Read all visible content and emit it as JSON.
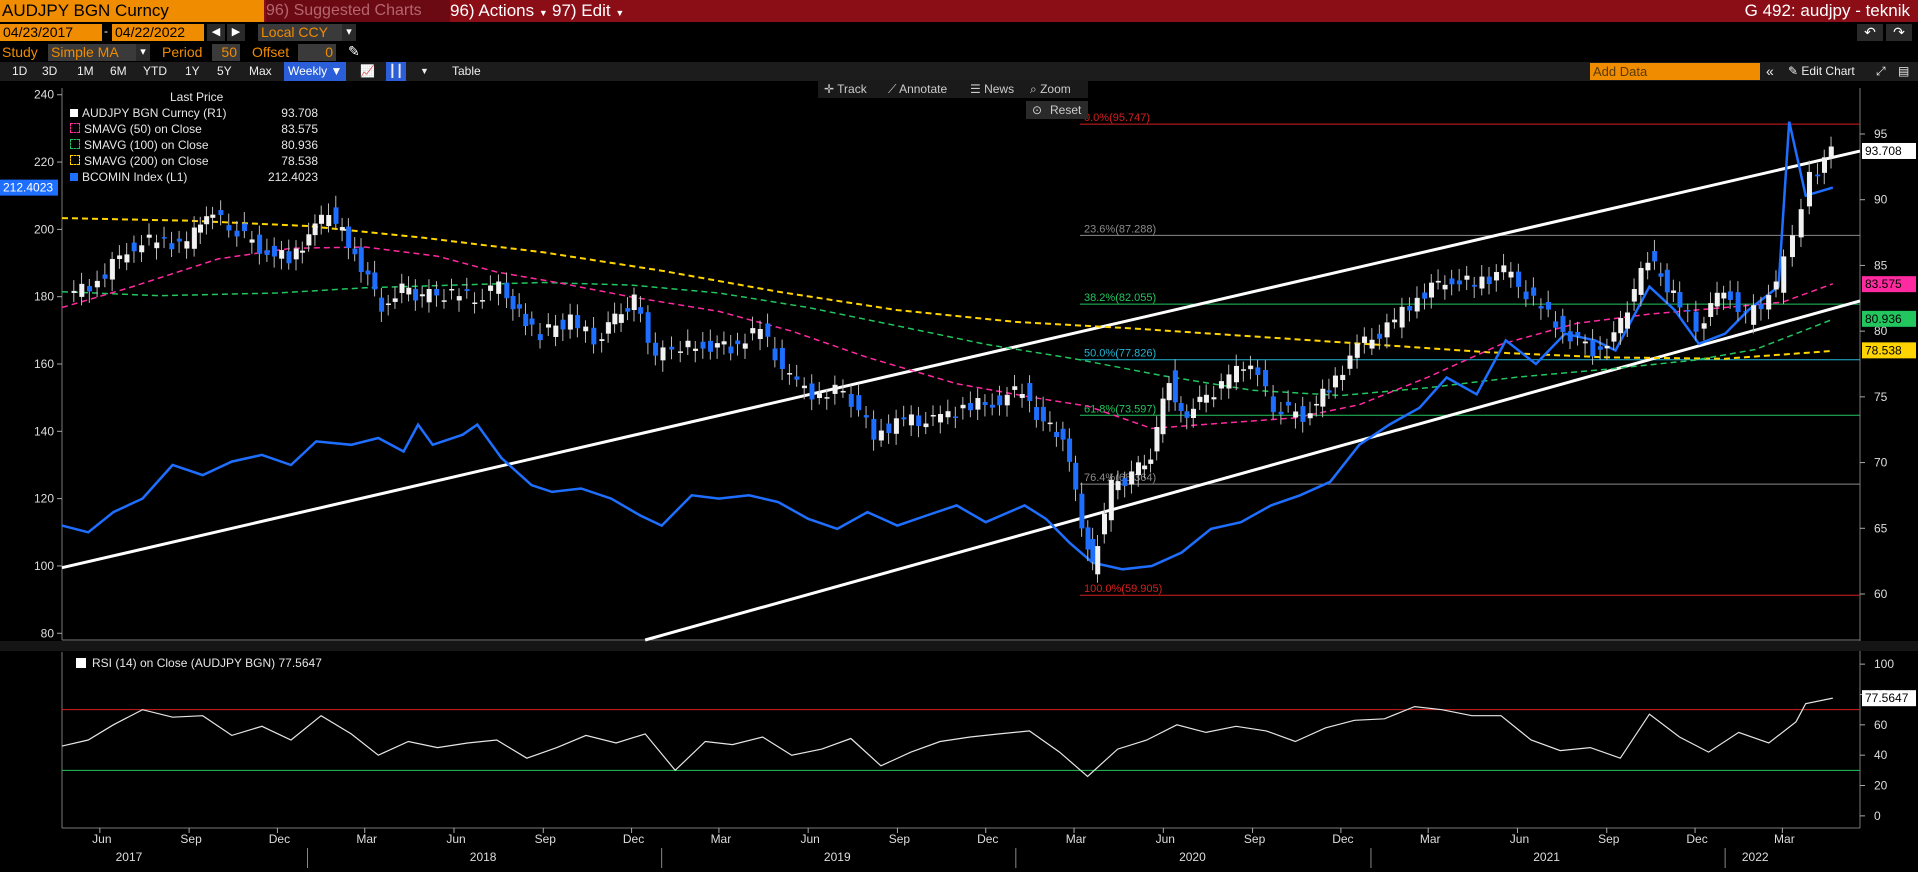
{
  "header": {
    "security": "AUDJPY BGN Curncy",
    "suggested": "96) Suggested Charts",
    "actions": "96) Actions",
    "edit": "97) Edit",
    "title_right": "G 492: audjpy - teknik"
  },
  "toolbar": {
    "date_from": "04/23/2017",
    "date_to": "04/22/2022",
    "currency": "Local CCY",
    "study_label": "Study",
    "study_value": "Simple MA",
    "period_label": "Period",
    "period_value": "50",
    "offset_label": "Offset",
    "offset_value": "0",
    "timeframes": [
      "1D",
      "3D",
      "1M",
      "6M",
      "YTD",
      "1Y",
      "5Y",
      "Max"
    ],
    "frequency": "Weekly",
    "table": "Table",
    "add_data_placeholder": "Add Data",
    "edit_chart": "Edit Chart"
  },
  "chart_tools": {
    "track": "Track",
    "annotate": "Annotate",
    "news": "News",
    "zoom": "Zoom",
    "reset": "Reset"
  },
  "legend": {
    "header": "Last Price",
    "rows": [
      {
        "label": "AUDJPY BGN Curncy  (R1)",
        "value": "93.708",
        "color": "#ffffff"
      },
      {
        "label": "SMAVG (50)  on Close",
        "value": "83.575",
        "color": "#ff2aa0"
      },
      {
        "label": "SMAVG (100)  on Close",
        "value": "80.936",
        "color": "#22c55e"
      },
      {
        "label": "SMAVG (200)  on Close",
        "value": "78.538",
        "color": "#ffd400"
      },
      {
        "label": "BCOMIN Index  (L1)",
        "value": "212.4023",
        "color": "#1e6fff"
      }
    ]
  },
  "colors": {
    "price": "#ffffff",
    "sma50": "#ff2aa0",
    "sma100": "#22c55e",
    "sma200": "#ffd400",
    "bcomin": "#1e6fff",
    "fib": "#8a8a8a",
    "accent": "#f08c00"
  },
  "chart_data": {
    "type": "line",
    "x_time_labels": [
      {
        "label": "Jun",
        "date": "2017-06"
      },
      {
        "label": "Sep",
        "date": "2017-09"
      },
      {
        "label": "Dec",
        "date": "2017-12"
      },
      {
        "label": "Mar",
        "date": "2018-03"
      },
      {
        "label": "Jun",
        "date": "2018-06"
      },
      {
        "label": "Sep",
        "date": "2018-09"
      },
      {
        "label": "Dec",
        "date": "2018-12"
      },
      {
        "label": "Mar",
        "date": "2019-03"
      },
      {
        "label": "Jun",
        "date": "2019-06"
      },
      {
        "label": "Sep",
        "date": "2019-09"
      },
      {
        "label": "Dec",
        "date": "2019-12"
      },
      {
        "label": "Mar",
        "date": "2020-03"
      },
      {
        "label": "Jun",
        "date": "2020-06"
      },
      {
        "label": "Sep",
        "date": "2020-09"
      },
      {
        "label": "Dec",
        "date": "2020-12"
      },
      {
        "label": "Mar",
        "date": "2021-03"
      },
      {
        "label": "Jun",
        "date": "2021-06"
      },
      {
        "label": "Sep",
        "date": "2021-09"
      },
      {
        "label": "Dec",
        "date": "2021-12"
      },
      {
        "label": "Mar",
        "date": "2022-03"
      }
    ],
    "years": [
      {
        "label": "2017",
        "date": "2017-07"
      },
      {
        "label": "2018",
        "date": "2018-07"
      },
      {
        "label": "2019",
        "date": "2019-07"
      },
      {
        "label": "2020",
        "date": "2020-07"
      },
      {
        "label": "2021",
        "date": "2021-07"
      },
      {
        "label": "2022",
        "date": "2022-02"
      }
    ],
    "x_range": [
      "2017-04-23",
      "2022-05-20"
    ],
    "right_axis": {
      "min": 56.5,
      "max": 98.5,
      "ticks": [
        60,
        65,
        70,
        75,
        80,
        85,
        90,
        95
      ]
    },
    "left_axis": {
      "min": 78,
      "max": 242,
      "ticks": [
        80,
        100,
        120,
        140,
        160,
        180,
        200,
        220,
        240
      ]
    },
    "rsi_axis": {
      "min": -8,
      "max": 108,
      "ticks": [
        0,
        20,
        40,
        60,
        80,
        100
      ]
    },
    "last_values": {
      "price": "93.708",
      "sma50": "83.575",
      "sma100": "80.936",
      "sma200": "78.538",
      "bcomin": "212.4023"
    },
    "fibonacci": [
      {
        "label": "0.0%(95.747)",
        "level": 95.747,
        "color": "#d42020"
      },
      {
        "label": "23.6%(87.288)",
        "level": 87.288,
        "color": "#8a8a8a"
      },
      {
        "label": "38.2%(82.055)",
        "level": 82.055,
        "color": "#22c55e"
      },
      {
        "label": "50.0%(77.826)",
        "level": 77.826,
        "color": "#22b5d5"
      },
      {
        "label": "61.8%(73.597)",
        "level": 73.597,
        "color": "#22c55e"
      },
      {
        "label": "76.4%(68.364)",
        "level": 68.364,
        "color": "#8a8a8a"
      },
      {
        "label": "100.0%(59.905)",
        "level": 59.905,
        "color": "#d42020"
      }
    ],
    "trendlines": [
      {
        "from": [
          "2017-04-23",
          62.0
        ],
        "to": [
          "2022-05-20",
          93.7
        ]
      },
      {
        "from": [
          "2018-12-15",
          56.5
        ],
        "to": [
          "2022-05-20",
          82.3
        ]
      }
    ],
    "price_series": [
      [
        "2017-04-30",
        82.6
      ],
      [
        "2017-06-01",
        83.8
      ],
      [
        "2017-07-01",
        86.3
      ],
      [
        "2017-08-01",
        87.0
      ],
      [
        "2017-09-01",
        86.5
      ],
      [
        "2017-09-20",
        89.1
      ],
      [
        "2017-10-15",
        88.1
      ],
      [
        "2017-11-15",
        86.4
      ],
      [
        "2017-12-15",
        85.4
      ],
      [
        "2018-01-10",
        87.8
      ],
      [
        "2018-01-25",
        88.9
      ],
      [
        "2018-02-20",
        86.0
      ],
      [
        "2018-03-20",
        82.0
      ],
      [
        "2018-04-10",
        83.1
      ],
      [
        "2018-05-01",
        82.7
      ],
      [
        "2018-06-01",
        82.8
      ],
      [
        "2018-06-25",
        82.5
      ],
      [
        "2018-07-20",
        83.5
      ],
      [
        "2018-08-15",
        80.5
      ],
      [
        "2018-09-01",
        79.8
      ],
      [
        "2018-10-01",
        80.9
      ],
      [
        "2018-10-26",
        79.3
      ],
      [
        "2018-11-15",
        81.0
      ],
      [
        "2018-12-05",
        82.3
      ],
      [
        "2018-12-28",
        78.2
      ],
      [
        "2019-01-15",
        78.5
      ],
      [
        "2019-02-15",
        79.0
      ],
      [
        "2019-03-15",
        78.8
      ],
      [
        "2019-04-15",
        80.1
      ],
      [
        "2019-05-15",
        76.3
      ],
      [
        "2019-06-15",
        75.0
      ],
      [
        "2019-07-10",
        75.6
      ],
      [
        "2019-08-10",
        72.2
      ],
      [
        "2019-09-10",
        73.2
      ],
      [
        "2019-10-10",
        73.1
      ],
      [
        "2019-11-10",
        74.2
      ],
      [
        "2019-12-10",
        74.6
      ],
      [
        "2020-01-10",
        75.6
      ],
      [
        "2020-01-31",
        72.8
      ],
      [
        "2020-02-20",
        72.0
      ],
      [
        "2020-03-10",
        65.5
      ],
      [
        "2020-03-20",
        62.0
      ],
      [
        "2020-04-10",
        68.2
      ],
      [
        "2020-05-01",
        69.0
      ],
      [
        "2020-05-20",
        70.5
      ],
      [
        "2020-06-08",
        76.5
      ],
      [
        "2020-06-20",
        73.5
      ],
      [
        "2020-07-10",
        74.5
      ],
      [
        "2020-08-10",
        76.4
      ],
      [
        "2020-09-01",
        77.7
      ],
      [
        "2020-09-25",
        74.3
      ],
      [
        "2020-10-25",
        73.6
      ],
      [
        "2020-11-20",
        75.6
      ],
      [
        "2020-12-20",
        78.7
      ],
      [
        "2021-01-20",
        80.2
      ],
      [
        "2021-02-20",
        82.6
      ],
      [
        "2021-03-20",
        84.0
      ],
      [
        "2021-04-20",
        83.6
      ],
      [
        "2021-05-20",
        84.6
      ],
      [
        "2021-06-20",
        82.3
      ],
      [
        "2021-07-20",
        80.1
      ],
      [
        "2021-08-20",
        78.6
      ],
      [
        "2021-09-10",
        79.4
      ],
      [
        "2021-10-15",
        85.6
      ],
      [
        "2021-11-10",
        82.7
      ],
      [
        "2021-12-05",
        80.3
      ],
      [
        "2022-01-01",
        83.4
      ],
      [
        "2022-01-25",
        81.0
      ],
      [
        "2022-02-25",
        83.3
      ],
      [
        "2022-03-15",
        87.2
      ],
      [
        "2022-04-01",
        91.6
      ],
      [
        "2022-04-22",
        93.7
      ]
    ],
    "sma50_series": [
      [
        "2017-04-23",
        81.8
      ],
      [
        "2017-07-01",
        83.3
      ],
      [
        "2017-10-01",
        85.5
      ],
      [
        "2017-12-15",
        86.3
      ],
      [
        "2018-03-01",
        86.4
      ],
      [
        "2018-05-15",
        85.7
      ],
      [
        "2018-07-15",
        84.5
      ],
      [
        "2018-09-15",
        83.7
      ],
      [
        "2018-12-01",
        82.6
      ],
      [
        "2019-03-01",
        81.5
      ],
      [
        "2019-05-15",
        80.0
      ],
      [
        "2019-08-01",
        78.0
      ],
      [
        "2019-11-01",
        76.0
      ],
      [
        "2020-01-15",
        75.0
      ],
      [
        "2020-03-15",
        74.3
      ],
      [
        "2020-05-20",
        72.6
      ],
      [
        "2020-08-01",
        73.0
      ],
      [
        "2020-10-15",
        73.4
      ],
      [
        "2020-12-20",
        74.4
      ],
      [
        "2021-03-01",
        76.5
      ],
      [
        "2021-05-15",
        79.0
      ],
      [
        "2021-08-01",
        80.6
      ],
      [
        "2021-10-15",
        81.3
      ],
      [
        "2022-01-01",
        81.8
      ],
      [
        "2022-03-01",
        82.2
      ],
      [
        "2022-04-22",
        83.6
      ]
    ],
    "sma100_series": [
      [
        "2017-04-23",
        83.0
      ],
      [
        "2017-08-01",
        82.7
      ],
      [
        "2017-12-01",
        82.9
      ],
      [
        "2018-03-01",
        83.3
      ],
      [
        "2018-06-01",
        83.5
      ],
      [
        "2018-09-01",
        83.7
      ],
      [
        "2018-12-01",
        83.5
      ],
      [
        "2019-03-01",
        82.9
      ],
      [
        "2019-06-01",
        81.8
      ],
      [
        "2019-09-01",
        80.4
      ],
      [
        "2019-12-01",
        79.0
      ],
      [
        "2020-03-01",
        77.9
      ],
      [
        "2020-06-01",
        76.6
      ],
      [
        "2020-09-01",
        75.5
      ],
      [
        "2020-12-01",
        75.1
      ],
      [
        "2021-03-01",
        75.7
      ],
      [
        "2021-06-01",
        76.5
      ],
      [
        "2021-09-01",
        77.1
      ],
      [
        "2021-12-01",
        77.8
      ],
      [
        "2022-02-01",
        78.6
      ],
      [
        "2022-04-22",
        80.9
      ]
    ],
    "sma200_series": [
      [
        "2017-04-23",
        88.6
      ],
      [
        "2017-09-01",
        88.4
      ],
      [
        "2018-01-01",
        88.0
      ],
      [
        "2018-05-01",
        87.1
      ],
      [
        "2018-09-01",
        86.0
      ],
      [
        "2019-01-01",
        84.6
      ],
      [
        "2019-05-01",
        83.0
      ],
      [
        "2019-09-01",
        81.6
      ],
      [
        "2020-01-01",
        80.7
      ],
      [
        "2020-05-01",
        80.2
      ],
      [
        "2020-09-01",
        79.6
      ],
      [
        "2021-01-01",
        79.0
      ],
      [
        "2021-05-01",
        78.4
      ],
      [
        "2021-09-01",
        78.0
      ],
      [
        "2022-01-01",
        77.9
      ],
      [
        "2022-04-22",
        78.5
      ]
    ],
    "bcomin_series": [
      [
        "2017-04-23",
        112
      ],
      [
        "2017-05-20",
        110
      ],
      [
        "2017-06-15",
        116
      ],
      [
        "2017-07-15",
        120
      ],
      [
        "2017-08-15",
        130
      ],
      [
        "2017-09-15",
        127
      ],
      [
        "2017-10-15",
        131
      ],
      [
        "2017-11-15",
        133
      ],
      [
        "2017-12-15",
        130
      ],
      [
        "2018-01-10",
        137
      ],
      [
        "2018-02-15",
        136
      ],
      [
        "2018-03-15",
        138
      ],
      [
        "2018-04-10",
        134
      ],
      [
        "2018-04-25",
        142
      ],
      [
        "2018-05-10",
        136
      ],
      [
        "2018-06-10",
        139
      ],
      [
        "2018-06-25",
        142
      ],
      [
        "2018-07-20",
        132
      ],
      [
        "2018-08-20",
        124
      ],
      [
        "2018-09-10",
        122
      ],
      [
        "2018-10-10",
        123
      ],
      [
        "2018-11-10",
        120
      ],
      [
        "2018-12-10",
        115
      ],
      [
        "2019-01-01",
        112
      ],
      [
        "2019-02-01",
        121
      ],
      [
        "2019-03-01",
        120
      ],
      [
        "2019-04-01",
        121
      ],
      [
        "2019-05-01",
        119
      ],
      [
        "2019-06-01",
        114
      ],
      [
        "2019-07-01",
        111
      ],
      [
        "2019-08-01",
        116
      ],
      [
        "2019-09-01",
        112
      ],
      [
        "2019-10-01",
        115
      ],
      [
        "2019-11-01",
        118
      ],
      [
        "2019-12-01",
        113
      ],
      [
        "2020-01-10",
        118
      ],
      [
        "2020-02-01",
        114
      ],
      [
        "2020-02-25",
        107
      ],
      [
        "2020-03-20",
        101
      ],
      [
        "2020-04-20",
        99
      ],
      [
        "2020-05-20",
        100
      ],
      [
        "2020-06-20",
        104
      ],
      [
        "2020-07-20",
        111
      ],
      [
        "2020-08-20",
        113
      ],
      [
        "2020-09-20",
        118
      ],
      [
        "2020-10-20",
        121
      ],
      [
        "2020-11-20",
        125
      ],
      [
        "2020-12-20",
        136
      ],
      [
        "2021-01-20",
        142
      ],
      [
        "2021-02-20",
        147
      ],
      [
        "2021-03-20",
        156
      ],
      [
        "2021-04-20",
        151
      ],
      [
        "2021-05-20",
        167
      ],
      [
        "2021-06-20",
        160
      ],
      [
        "2021-07-20",
        169
      ],
      [
        "2021-08-20",
        167
      ],
      [
        "2021-09-10",
        164
      ],
      [
        "2021-10-15",
        183
      ],
      [
        "2021-11-10",
        176
      ],
      [
        "2021-12-05",
        166
      ],
      [
        "2022-01-01",
        169
      ],
      [
        "2022-01-25",
        176
      ],
      [
        "2022-02-25",
        183
      ],
      [
        "2022-03-08",
        232
      ],
      [
        "2022-03-25",
        210
      ],
      [
        "2022-04-22",
        212.4
      ]
    ],
    "rsi_label": "RSI (14)  on Close (AUDJPY BGN) 77.5647",
    "rsi_last": "77.5647",
    "rsi_levels": [
      70,
      30
    ],
    "rsi_series": [
      [
        "2017-04-23",
        46
      ],
      [
        "2017-05-20",
        50
      ],
      [
        "2017-06-15",
        60
      ],
      [
        "2017-07-15",
        70
      ],
      [
        "2017-08-15",
        65
      ],
      [
        "2017-09-15",
        66
      ],
      [
        "2017-10-15",
        53
      ],
      [
        "2017-11-15",
        59
      ],
      [
        "2017-12-15",
        50
      ],
      [
        "2018-01-15",
        66
      ],
      [
        "2018-02-15",
        54
      ],
      [
        "2018-03-15",
        40
      ],
      [
        "2018-04-15",
        49
      ],
      [
        "2018-05-15",
        45
      ],
      [
        "2018-06-15",
        48
      ],
      [
        "2018-07-15",
        50
      ],
      [
        "2018-08-15",
        38
      ],
      [
        "2018-09-15",
        45
      ],
      [
        "2018-10-15",
        53
      ],
      [
        "2018-11-15",
        48
      ],
      [
        "2018-12-15",
        54
      ],
      [
        "2019-01-15",
        30
      ],
      [
        "2019-02-15",
        49
      ],
      [
        "2019-03-15",
        47
      ],
      [
        "2019-04-15",
        52
      ],
      [
        "2019-05-15",
        40
      ],
      [
        "2019-06-15",
        44
      ],
      [
        "2019-07-15",
        51
      ],
      [
        "2019-08-15",
        33
      ],
      [
        "2019-09-15",
        42
      ],
      [
        "2019-10-15",
        49
      ],
      [
        "2019-11-15",
        52
      ],
      [
        "2019-12-15",
        54
      ],
      [
        "2020-01-15",
        56
      ],
      [
        "2020-02-15",
        42
      ],
      [
        "2020-03-15",
        26
      ],
      [
        "2020-04-15",
        44
      ],
      [
        "2020-05-15",
        50
      ],
      [
        "2020-06-15",
        60
      ],
      [
        "2020-07-15",
        55
      ],
      [
        "2020-08-15",
        59
      ],
      [
        "2020-09-15",
        56
      ],
      [
        "2020-10-15",
        49
      ],
      [
        "2020-11-15",
        58
      ],
      [
        "2020-12-15",
        63
      ],
      [
        "2021-01-15",
        64
      ],
      [
        "2021-02-15",
        72
      ],
      [
        "2021-03-15",
        70
      ],
      [
        "2021-04-15",
        66
      ],
      [
        "2021-05-15",
        66
      ],
      [
        "2021-06-15",
        50
      ],
      [
        "2021-07-15",
        43
      ],
      [
        "2021-08-15",
        45
      ],
      [
        "2021-09-15",
        38
      ],
      [
        "2021-10-15",
        67
      ],
      [
        "2021-11-15",
        52
      ],
      [
        "2021-12-15",
        42
      ],
      [
        "2022-01-15",
        55
      ],
      [
        "2022-02-15",
        48
      ],
      [
        "2022-03-15",
        62
      ],
      [
        "2022-03-25",
        74
      ],
      [
        "2022-04-22",
        77.6
      ]
    ]
  }
}
